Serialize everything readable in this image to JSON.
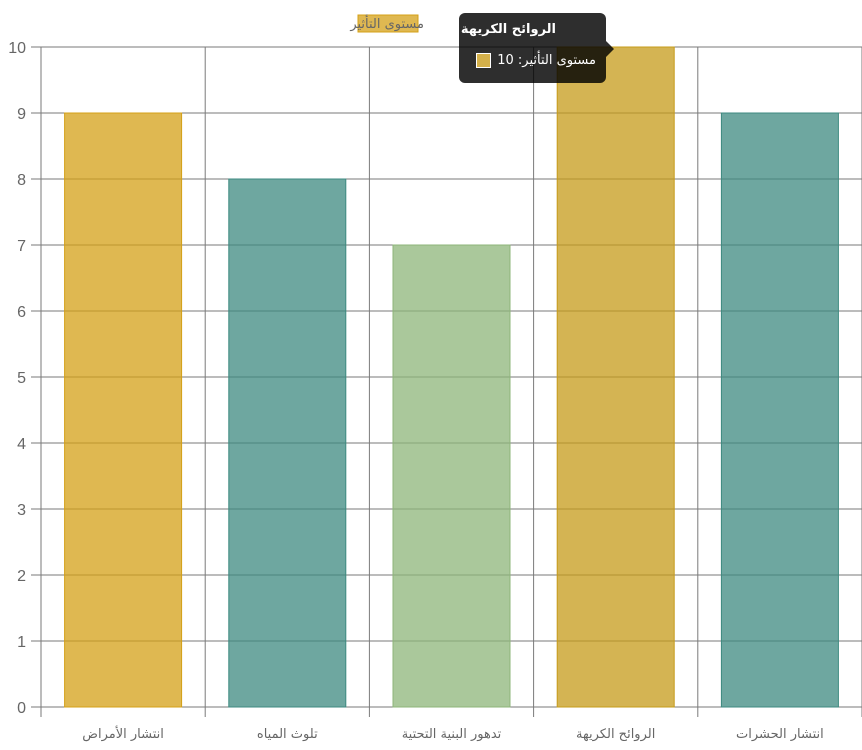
{
  "chart_data": {
    "type": "bar",
    "categories": [
      "انتشار الأمراض",
      "تلوث المياه",
      "تدهور البنية التحتية",
      "الروائح الكريهة",
      "انتشار الحشرات"
    ],
    "series": [
      {
        "name": "مستوى التأثير",
        "values": [
          9,
          8,
          7,
          10,
          9
        ]
      }
    ],
    "bar_colors": [
      "#d4a017",
      "#3d8a80",
      "#8db57a",
      "#c69b19",
      "#3d8a80"
    ],
    "bar_opacity": 0.75,
    "ylim": [
      0,
      10
    ],
    "yticks": [
      "0",
      "1",
      "2",
      "3",
      "4",
      "5",
      "6",
      "7",
      "8",
      "9",
      "10"
    ],
    "grid": true,
    "legend": "top"
  },
  "tooltip": {
    "title": "الروائح الكريهة",
    "label": "مستوى التأثير: 10",
    "swatch_color": "#d4b04a"
  }
}
